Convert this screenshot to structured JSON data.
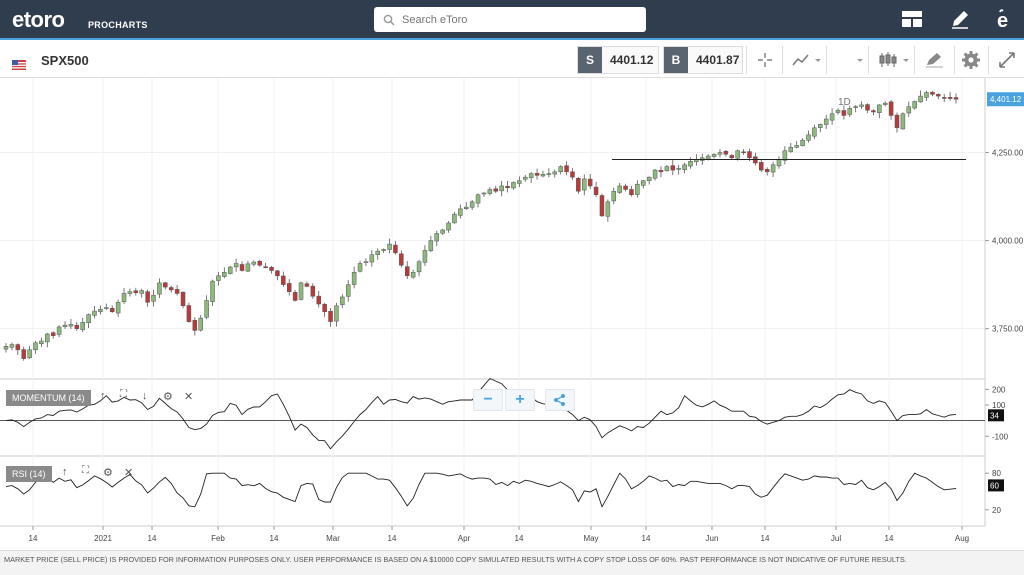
{
  "app": {
    "brand": "etoro",
    "brand_sub": "PROCHARTS"
  },
  "search": {
    "placeholder": "Search eToro"
  },
  "header_icons": [
    "layout-icon",
    "edit-pencil-icon",
    "etoro-e-icon"
  ],
  "instrument": {
    "symbol": "SPX500",
    "sell_label": "S",
    "sell_price": "4401.12",
    "buy_label": "B",
    "buy_price": "4401.87",
    "timeframe": "1D"
  },
  "toolbar_icons": [
    "crosshair-icon",
    "chart-type-line-icon",
    "timeframe-dropdown",
    "candlestick-icon",
    "draw-tools-icon",
    "settings-gear-icon",
    "fullscreen-icon"
  ],
  "price_axis": {
    "ticks": [
      "4,250.00",
      "4,000.00",
      "3,750.00"
    ],
    "current_price_tag": "4,401.12",
    "current_price": 4401.12,
    "min": 3610,
    "max": 4450,
    "horizontal_level": 4230
  },
  "momentum": {
    "label": "MOMENTUM (14)",
    "ticks": [
      "200",
      "100",
      "-100"
    ],
    "current_tag": "34",
    "current": 34,
    "min": -220,
    "max": 260
  },
  "rsi": {
    "label": "RSI (14)",
    "ticks": [
      "80",
      "20"
    ],
    "current_tag": "60",
    "current": 60,
    "min": 0,
    "max": 100
  },
  "x_axis": {
    "labels": [
      "14",
      "2021",
      "14",
      "Feb",
      "14",
      "Mar",
      "14",
      "Apr",
      "14",
      "May",
      "14",
      "Jun",
      "14",
      "Jul",
      "14",
      "Aug"
    ]
  },
  "colors": {
    "up": "#8cba7d",
    "down": "#b93a3a",
    "accent": "#4aa3df",
    "topbar": "#303d4e"
  },
  "footer": {
    "disclaimer": "MARKET PRICE (SELL PRICE) IS PROVIDED FOR INFORMATION PURPOSES ONLY. USER PERFORMANCE IS BASED ON A $10000 COPY SIMULATED RESULTS WITH A COPY STOP LOSS OF 60%. PAST PERFORMANCE IS NOT INDICATIVE OF FUTURE RESULTS."
  },
  "chart_data": {
    "type": "candlestick",
    "title": "",
    "ylabel": "",
    "ylim": [
      3610,
      4450
    ],
    "closes": [
      3700,
      3705,
      3690,
      3665,
      3690,
      3710,
      3715,
      3735,
      3730,
      3755,
      3760,
      3762,
      3750,
      3768,
      3790,
      3800,
      3805,
      3810,
      3798,
      3825,
      3850,
      3855,
      3852,
      3858,
      3825,
      3845,
      3880,
      3868,
      3860,
      3850,
      3815,
      3770,
      3745,
      3780,
      3830,
      3885,
      3900,
      3910,
      3925,
      3935,
      3915,
      3934,
      3939,
      3930,
      3925,
      3915,
      3900,
      3875,
      3855,
      3830,
      3880,
      3870,
      3842,
      3820,
      3798,
      3770,
      3815,
      3840,
      3875,
      3910,
      3935,
      3940,
      3960,
      3970,
      3975,
      3990,
      3965,
      3930,
      3900,
      3910,
      3940,
      3972,
      4000,
      4020,
      4030,
      4050,
      4075,
      4090,
      4095,
      4110,
      4130,
      4135,
      4145,
      4140,
      4155,
      4150,
      4165,
      4170,
      4180,
      4190,
      4185,
      4188,
      4190,
      4195,
      4210,
      4195,
      4180,
      4140,
      4175,
      4155,
      4130,
      4070,
      4110,
      4140,
      4155,
      4145,
      4130,
      4160,
      4170,
      4180,
      4200,
      4195,
      4210,
      4200,
      4205,
      4215,
      4225,
      4230,
      4235,
      4240,
      4245,
      4250,
      4245,
      4235,
      4255,
      4250,
      4235,
      4220,
      4200,
      4195,
      4215,
      4230,
      4255,
      4265,
      4270,
      4285,
      4300,
      4320,
      4330,
      4345,
      4360,
      4370,
      4355,
      4375,
      4380,
      4385,
      4370,
      4365,
      4385,
      4390,
      4355,
      4320,
      4360,
      4380,
      4395,
      4410,
      4420,
      4415,
      4410,
      4405,
      4403,
      4401
    ]
  }
}
